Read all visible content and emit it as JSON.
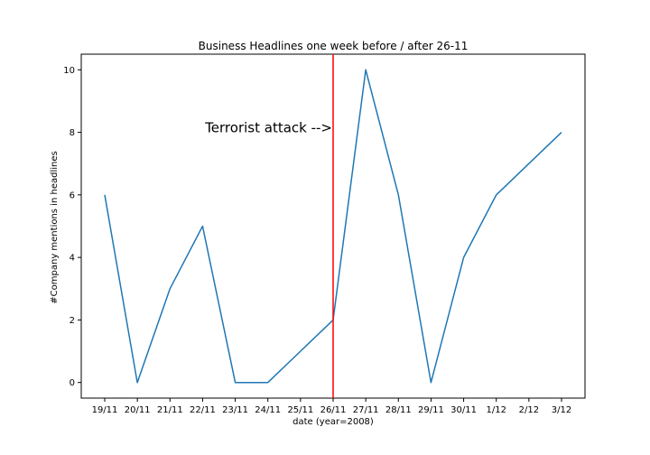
{
  "chart_data": {
    "type": "line",
    "title": "Business Headlines one week before / after 26-11",
    "xlabel": "date (year=2008)",
    "ylabel": "#Company mentions in headlines",
    "categories": [
      "19/11",
      "20/11",
      "21/11",
      "22/11",
      "23/11",
      "24/11",
      "25/11",
      "26/11",
      "27/11",
      "28/11",
      "29/11",
      "30/11",
      "1/12",
      "2/12",
      "3/12"
    ],
    "series": [
      {
        "values": [
          6,
          0,
          3,
          5,
          0,
          0,
          1,
          2,
          10,
          6,
          0,
          4,
          6,
          7,
          8
        ]
      }
    ],
    "ylim": [
      -0.5,
      10.5
    ],
    "yticks": [
      0,
      2,
      4,
      6,
      8,
      10
    ],
    "grid": false,
    "series_color": "#1f77b4",
    "vline": {
      "category": "26/11",
      "color": "#ff0000"
    },
    "annotation": {
      "text": "Terrorist attack -->",
      "category": "26/11",
      "y": 8
    }
  }
}
